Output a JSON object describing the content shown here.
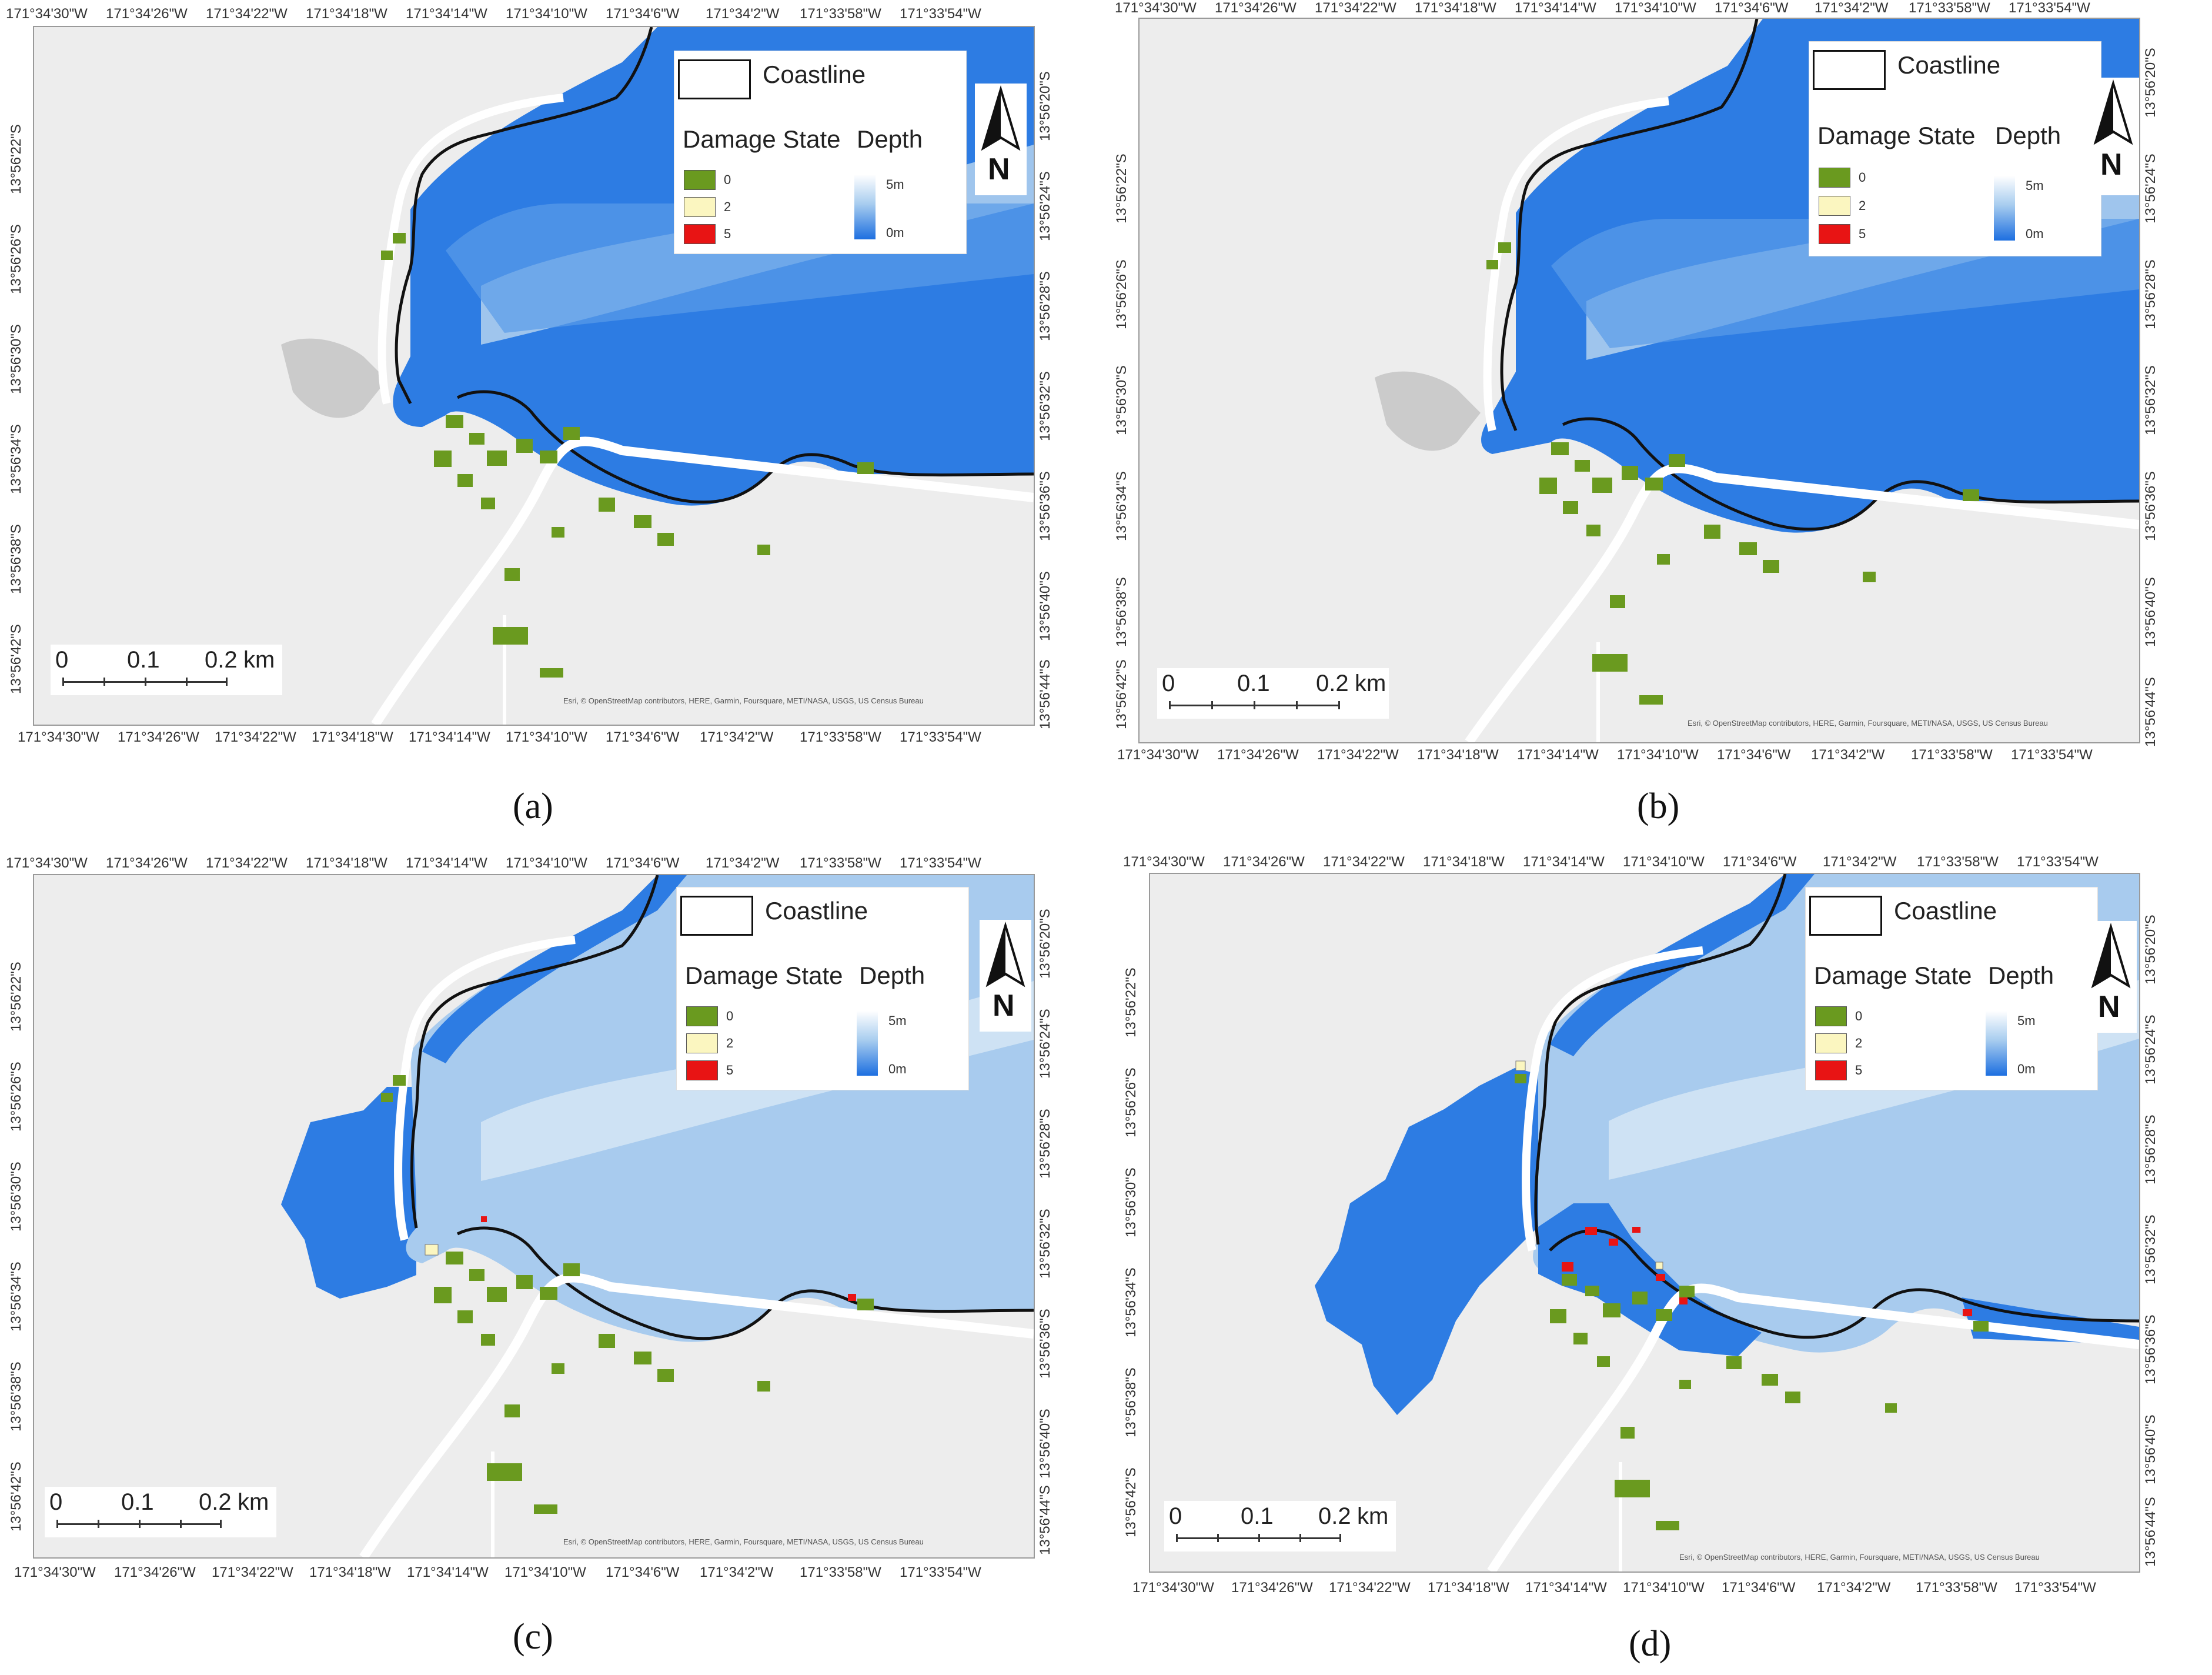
{
  "panels": [
    {
      "label": "(a)"
    },
    {
      "label": "(b)"
    },
    {
      "label": "(c)"
    },
    {
      "label": "(d)"
    }
  ],
  "map_axes": {
    "longitude_ticks": [
      "171°34'30\"W",
      "171°34'26\"W",
      "171°34'22\"W",
      "171°34'18\"W",
      "171°34'14\"W",
      "171°34'10\"W",
      "171°34'6\"W",
      "171°34'2\"W",
      "171°33'58\"W",
      "171°33'54\"W"
    ],
    "latitude_ticks_left": [
      "13°56'22\"S",
      "13°56'26\"S",
      "13°56'30\"S",
      "13°56'34\"S",
      "13°56'38\"S",
      "13°56'42\"S"
    ],
    "latitude_ticks_right": [
      "13°56'20\"S",
      "13°56'24\"S",
      "13°56'28\"S",
      "13°56'32\"S",
      "13°56'36\"S",
      "13°56'40\"S",
      "13°56'44\"S"
    ]
  },
  "legend": {
    "coastline_label": "Coastline",
    "damage_state_title": "Damage State",
    "depth_title": "Depth",
    "damage_states": [
      {
        "label": "0",
        "color": "#6a9a1f"
      },
      {
        "label": "2",
        "color": "#fbf6c0"
      },
      {
        "label": "5",
        "color": "#e81414"
      }
    ],
    "depth_max_label": "5m",
    "depth_min_label": "0m"
  },
  "north_arrow": {
    "label": "N"
  },
  "scale_bar": {
    "labels": [
      "0",
      "0.1",
      "0.2"
    ],
    "unit": "km"
  },
  "credit": "Esri, © OpenStreetMap contributors, HERE, Garmin, Foursquare, METI/NASA, USGS, US Census Bureau",
  "colors": {
    "background": "#ededed",
    "water_deep": "#1d6fe0",
    "water_mid": "#4d93e6",
    "water_light": "#b4d2ee",
    "road": "#ffffff",
    "pond": "#cbcbcb",
    "building_undamaged": "#6a9a1f",
    "coastline": "#111111"
  }
}
